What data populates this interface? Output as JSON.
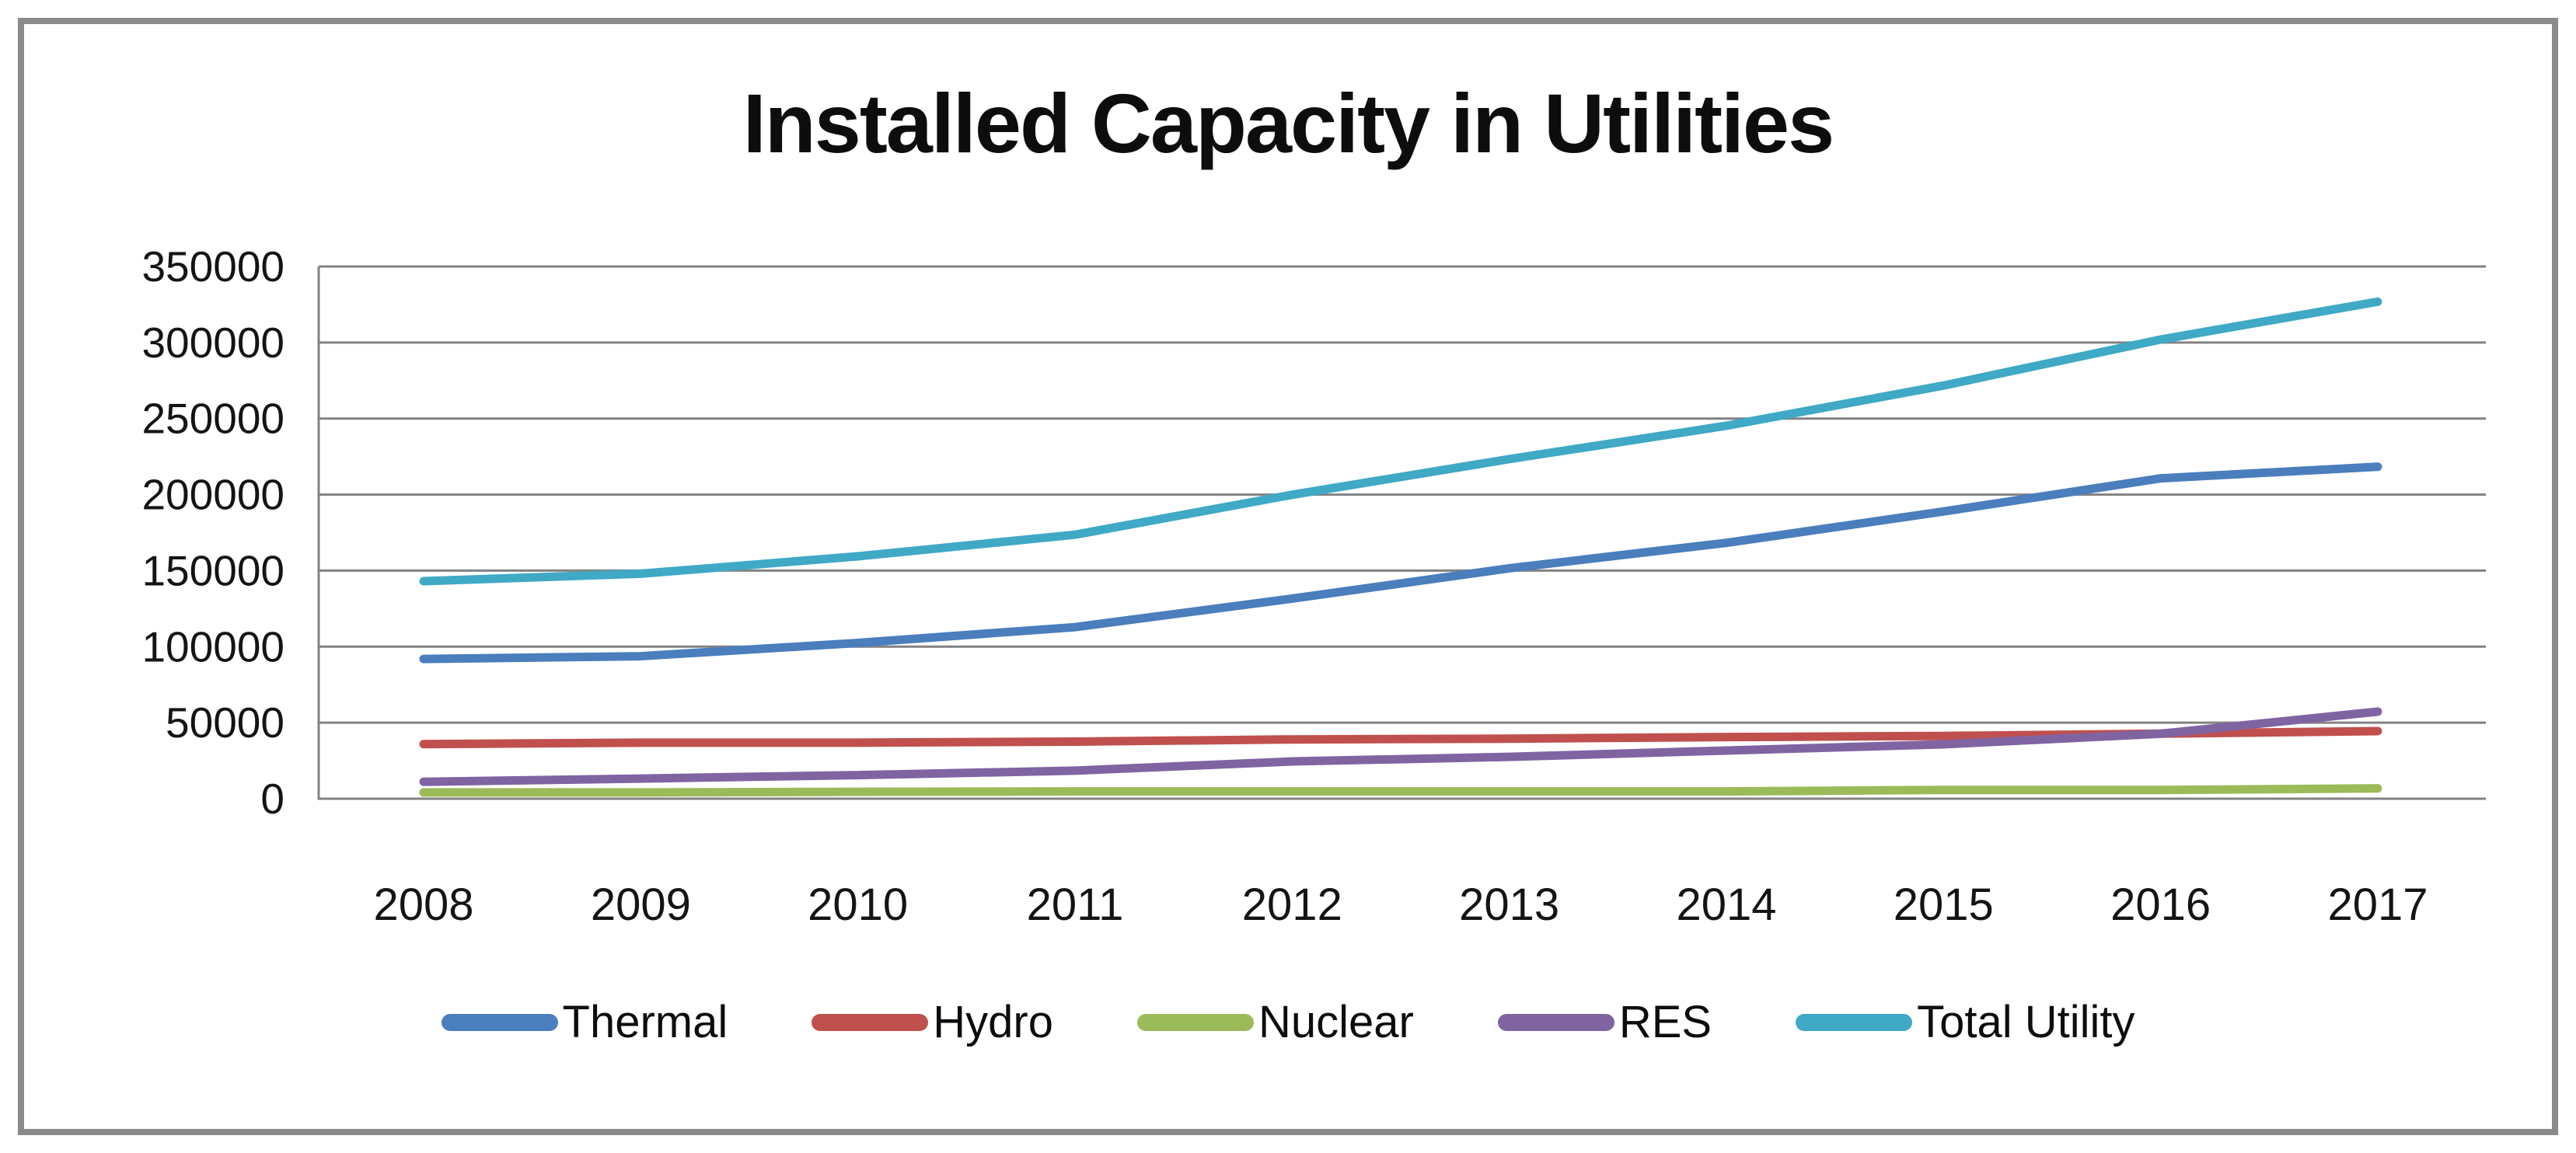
{
  "chart_data": {
    "type": "line",
    "title": "Installed Capacity in Utilities",
    "xlabel": "",
    "ylabel": "",
    "categories": [
      "2008",
      "2009",
      "2010",
      "2011",
      "2012",
      "2013",
      "2014",
      "2015",
      "2016",
      "2017"
    ],
    "series": [
      {
        "name": "Thermal",
        "color": "#4a7ebd",
        "values": [
          91907,
          93725,
          102454,
          112824,
          131603,
          151530,
          168255,
          188898,
          210675,
          218330
        ]
      },
      {
        "name": "Hydro",
        "color": "#c0504d",
        "values": [
          35909,
          36878,
          36863,
          37567,
          38990,
          39491,
          40531,
          41267,
          42783,
          44478
        ]
      },
      {
        "name": "Nuclear",
        "color": "#9bbb59",
        "values": [
          4120,
          4120,
          4560,
          4780,
          4780,
          4780,
          4780,
          5780,
          5780,
          6780
        ]
      },
      {
        "name": "RES",
        "color": "#8064a2",
        "values": [
          11125,
          13242,
          15521,
          18455,
          24503,
          27542,
          31692,
          35777,
          42727,
          57260
        ]
      },
      {
        "name": "Total Utility",
        "color": "#3fa9c6",
        "values": [
          143061,
          147965,
          159398,
          173626,
          199877,
          223344,
          245258,
          271722,
          301965,
          326848
        ]
      }
    ],
    "ylim": [
      0,
      350000
    ],
    "ytick_step": 50000,
    "y_tick_labels": [
      "0",
      "50000",
      "100000",
      "150000",
      "200000",
      "250000",
      "300000",
      "350000"
    ],
    "grid": "horizontal",
    "gridline_color": "#828282",
    "axis_color": "#828282",
    "legend_position": "bottom",
    "legend_labels": [
      "Thermal",
      "Hydro",
      "Nuclear",
      "RES",
      "Total Utility"
    ]
  }
}
